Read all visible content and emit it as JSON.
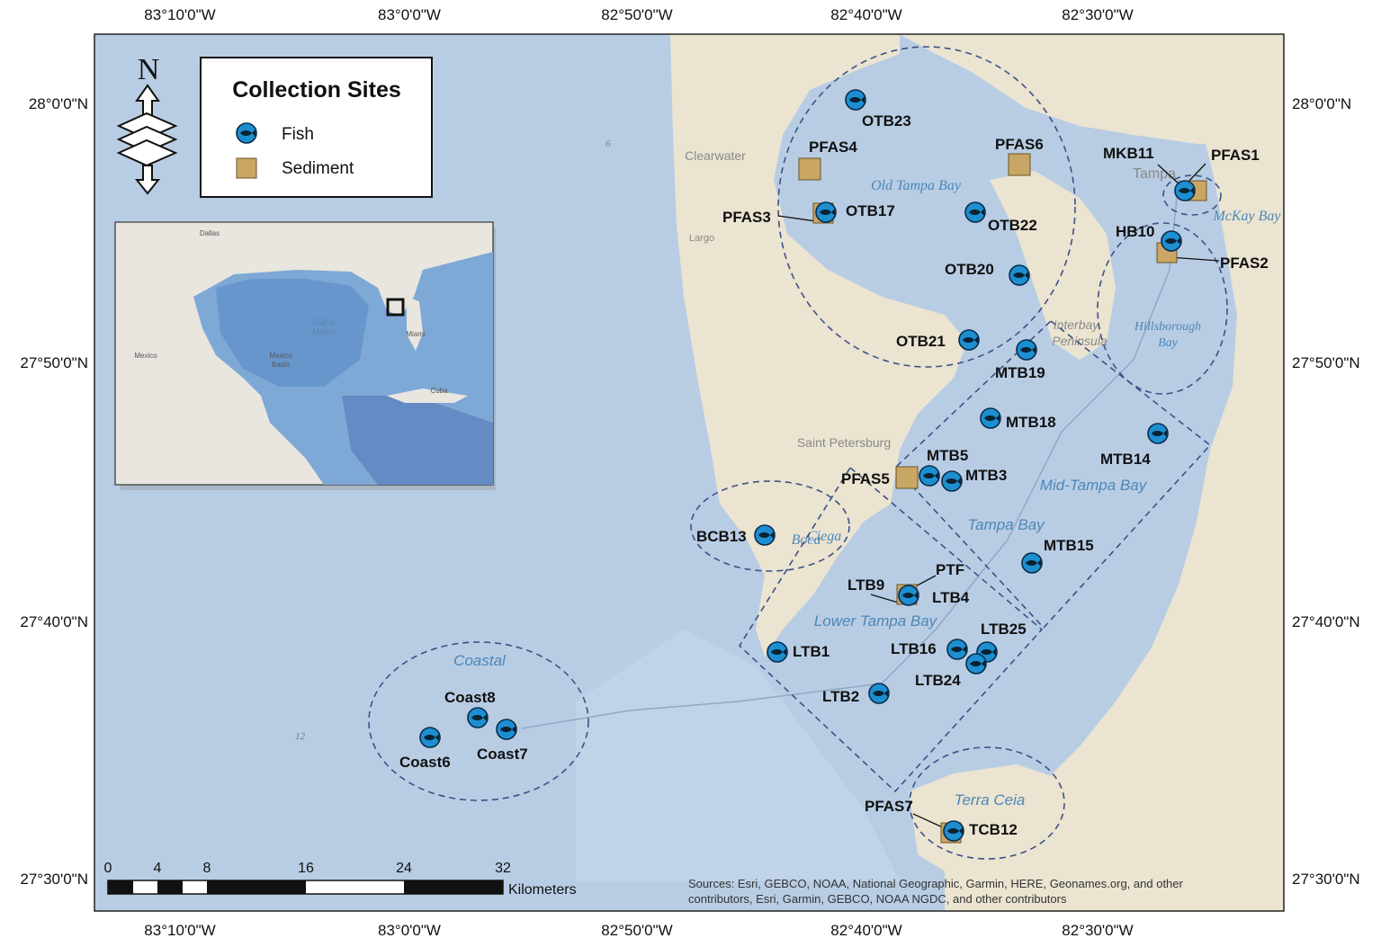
{
  "coordinates": {
    "top_longitudes": [
      "83°10'0\"W",
      "83°0'0\"W",
      "82°50'0\"W",
      "82°40'0\"W",
      "82°30'0\"W"
    ],
    "bottom_longitudes": [
      "83°10'0\"W",
      "83°0'0\"W",
      "82°50'0\"W",
      "82°40'0\"W",
      "82°30'0\"W"
    ],
    "left_latitudes": [
      "28°0'0\"N",
      "27°50'0\"N",
      "27°40'0\"N",
      "27°30'0\"N"
    ],
    "right_latitudes": [
      "28°0'0\"N",
      "27°50'0\"N",
      "27°40'0\"N",
      "27°30'0\"N"
    ]
  },
  "north_arrow": {
    "letter": "N",
    "icon": "north-arrow-icon"
  },
  "legend": {
    "title": "Collection Sites",
    "items": [
      {
        "label": "Fish",
        "icon": "fish-marker-icon",
        "color": "#1d8fd0"
      },
      {
        "label": "Sediment",
        "icon": "sediment-square-icon",
        "color": "#c9a663"
      }
    ]
  },
  "inset": {
    "labels": [
      "Gulf of",
      "Mexico",
      "Mexico",
      "Basin",
      "Cuba",
      "Mexico",
      "Dallas",
      "Miami"
    ]
  },
  "place_labels": [
    "Clearwater",
    "Largo",
    "Saint Petersburg",
    "Tampa",
    "Interbay",
    "Peninsula"
  ],
  "water_labels": [
    "Old Tampa Bay",
    "McKay Bay",
    "Hillsborough",
    "Bay",
    "Mid-Tampa Bay",
    "Tampa Bay",
    "Boca",
    "Ciega",
    "Lower Tampa Bay",
    "Coastal",
    "Terra Ceia"
  ],
  "depth_labels": [
    "6",
    "12"
  ],
  "fish_sites": [
    "OTB23",
    "OTB17",
    "OTB22",
    "OTB20",
    "OTB21",
    "MKB11",
    "HB10",
    "MTB19",
    "MTB18",
    "MTB14",
    "MTB5",
    "MTB3",
    "MTB15",
    "BCB13",
    "LTB4",
    "LTB1",
    "LTB16",
    "LTB25",
    "LTB24",
    "LTB2",
    "Coast8",
    "Coast6",
    "Coast7",
    "TCB12"
  ],
  "sediment_sites": [
    "PFAS4",
    "PFAS6",
    "PFAS3",
    "PFAS1",
    "PFAS2",
    "PFAS5",
    "PTF",
    "LTB9",
    "PFAS7"
  ],
  "scale_bar": {
    "ticks": [
      "0",
      "4",
      "8",
      "16",
      "24",
      "32"
    ],
    "unit": "Kilometers"
  },
  "credits": {
    "line1": "Sources: Esri, GEBCO, NOAA, National Geographic, Garmin, HERE, Geonames.org, and other",
    "line2": "contributors, Esri, Garmin, GEBCO, NOAA NGDC, and other contributors"
  },
  "colors": {
    "water": "#b8cde4",
    "land": "#ebe4d1",
    "fish_marker": "#1d8fd0",
    "sediment_marker": "#c9a663",
    "zone_outline": "#3b5286"
  }
}
